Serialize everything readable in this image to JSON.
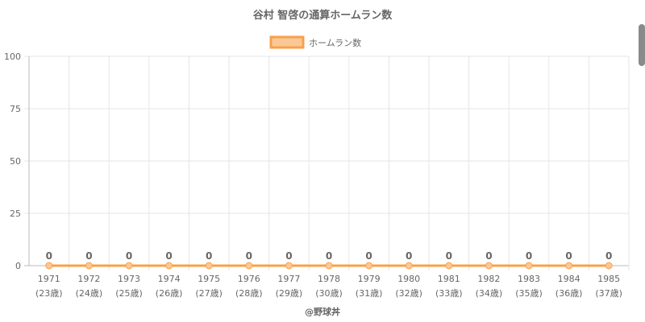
{
  "chart_data": {
    "type": "line",
    "title": "谷村 智啓の通算ホームラン数",
    "credit": "@野球丼",
    "categories": [
      "1971",
      "1972",
      "1973",
      "1974",
      "1975",
      "1976",
      "1977",
      "1978",
      "1979",
      "1980",
      "1981",
      "1982",
      "1983",
      "1984",
      "1985"
    ],
    "sublabels": [
      "(23歳)",
      "(24歳)",
      "(25歳)",
      "(26歳)",
      "(27歳)",
      "(28歳)",
      "(29歳)",
      "(30歳)",
      "(31歳)",
      "(32歳)",
      "(33歳)",
      "(34歳)",
      "(35歳)",
      "(36歳)",
      "(37歳)"
    ],
    "series": [
      {
        "name": "ホームラン数",
        "values": [
          0,
          0,
          0,
          0,
          0,
          0,
          0,
          0,
          0,
          0,
          0,
          0,
          0,
          0,
          0
        ],
        "color": "#f7a14a",
        "fill": "#f9c896"
      }
    ],
    "ylim": [
      0,
      100
    ],
    "yticks": [
      0,
      25,
      50,
      75,
      100
    ],
    "grid": true,
    "legend": "top-center",
    "data_labels": true
  }
}
